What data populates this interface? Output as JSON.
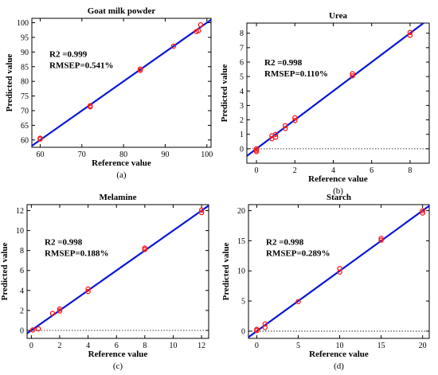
{
  "chart_data": [
    {
      "type": "scatter",
      "panel_label": "(a)",
      "title": "Goat milk powder",
      "xlabel": "Reference value",
      "ylabel": "Predicted value",
      "xlim": [
        58,
        101
      ],
      "ylim": [
        57.5,
        101.5
      ],
      "xticks": [
        60,
        70,
        80,
        90,
        100
      ],
      "yticks": [
        60,
        65,
        70,
        75,
        80,
        85,
        90,
        95,
        100
      ],
      "annotation": [
        "R2 =0.999",
        "RMSEP=0.541%"
      ],
      "zero_line": false,
      "fit_line": {
        "x": [
          58,
          101
        ],
        "y": [
          58,
          101
        ]
      },
      "points": [
        {
          "x": 60,
          "y": 60.3
        },
        {
          "x": 60,
          "y": 60.6
        },
        {
          "x": 72,
          "y": 71.3
        },
        {
          "x": 72,
          "y": 71.7
        },
        {
          "x": 84,
          "y": 83.7
        },
        {
          "x": 84,
          "y": 84.2
        },
        {
          "x": 92,
          "y": 92.0
        },
        {
          "x": 97.5,
          "y": 97.0
        },
        {
          "x": 98,
          "y": 97.3
        },
        {
          "x": 98.5,
          "y": 99.3
        }
      ]
    },
    {
      "type": "scatter",
      "panel_label": "(b)",
      "title": "Urea",
      "xlabel": "Reference value",
      "ylabel": "Predicted value",
      "xlim": [
        -0.5,
        9
      ],
      "ylim": [
        -1,
        8.7
      ],
      "xticks": [
        0,
        2,
        4,
        6,
        8
      ],
      "yticks": [
        0,
        1,
        2,
        3,
        4,
        5,
        6,
        7,
        8
      ],
      "annotation": [
        "R2 =0.998",
        "RMSEP=0.110%"
      ],
      "zero_line": true,
      "fit_line": {
        "x": [
          -0.5,
          9
        ],
        "y": [
          -0.5,
          9
        ]
      },
      "points": [
        {
          "x": 0,
          "y": -0.2
        },
        {
          "x": 0,
          "y": 0.0
        },
        {
          "x": 0,
          "y": -0.1
        },
        {
          "x": 0.8,
          "y": 0.7
        },
        {
          "x": 0.8,
          "y": 0.9
        },
        {
          "x": 1,
          "y": 0.8
        },
        {
          "x": 1,
          "y": 1.0
        },
        {
          "x": 1.5,
          "y": 1.4
        },
        {
          "x": 1.5,
          "y": 1.6
        },
        {
          "x": 2,
          "y": 1.95
        },
        {
          "x": 2,
          "y": 2.15
        },
        {
          "x": 5,
          "y": 5.05
        },
        {
          "x": 5,
          "y": 5.2
        },
        {
          "x": 8,
          "y": 7.85
        },
        {
          "x": 8,
          "y": 8.05
        }
      ]
    },
    {
      "type": "scatter",
      "panel_label": "(c)",
      "title": "Melamine",
      "xlabel": "Reference value",
      "ylabel": "Predicted value",
      "xlim": [
        -0.3,
        12.5
      ],
      "ylim": [
        -0.8,
        12.6
      ],
      "xticks": [
        0,
        2,
        4,
        6,
        8,
        10,
        12
      ],
      "yticks": [
        0,
        2,
        4,
        6,
        8,
        10,
        12
      ],
      "annotation": [
        "R2 =0.998",
        "RMSEP=0.188%"
      ],
      "zero_line": true,
      "fit_line": {
        "x": [
          -0.3,
          12.5
        ],
        "y": [
          -0.3,
          12.5
        ]
      },
      "points": [
        {
          "x": 0.1,
          "y": 0.05
        },
        {
          "x": 0.5,
          "y": 0.15
        },
        {
          "x": 1.5,
          "y": 1.7
        },
        {
          "x": 2,
          "y": 1.95
        },
        {
          "x": 2,
          "y": 2.15
        },
        {
          "x": 4,
          "y": 3.9
        },
        {
          "x": 4,
          "y": 4.15
        },
        {
          "x": 8,
          "y": 8.1
        },
        {
          "x": 8,
          "y": 8.25
        },
        {
          "x": 12,
          "y": 11.8
        },
        {
          "x": 12,
          "y": 12.05
        }
      ]
    },
    {
      "type": "scatter",
      "panel_label": "(d)",
      "title": "Starch",
      "xlabel": "Reference value",
      "ylabel": "Predicted value",
      "xlim": [
        -1,
        20.8
      ],
      "ylim": [
        -1.2,
        21
      ],
      "xticks": [
        0,
        5,
        10,
        15,
        20
      ],
      "yticks": [
        0,
        5,
        10,
        15,
        20
      ],
      "annotation": [
        "R2 =0.998",
        "RMSEP=0.289%"
      ],
      "zero_line": true,
      "fit_line": {
        "x": [
          -1,
          20.8
        ],
        "y": [
          -1,
          20.8
        ]
      },
      "points": [
        {
          "x": 0,
          "y": 0.1
        },
        {
          "x": 0,
          "y": 0.3
        },
        {
          "x": 1,
          "y": 0.6
        },
        {
          "x": 1,
          "y": 1.2
        },
        {
          "x": 5,
          "y": 4.9
        },
        {
          "x": 10,
          "y": 9.8
        },
        {
          "x": 10,
          "y": 10.4
        },
        {
          "x": 15,
          "y": 15.1
        },
        {
          "x": 15,
          "y": 15.4
        },
        {
          "x": 20,
          "y": 19.6
        },
        {
          "x": 20,
          "y": 20.0
        }
      ]
    }
  ],
  "style": {
    "fit_line_color": "#0a16d6",
    "marker_color": "#ff1a1a",
    "axis_color": "#000000"
  }
}
